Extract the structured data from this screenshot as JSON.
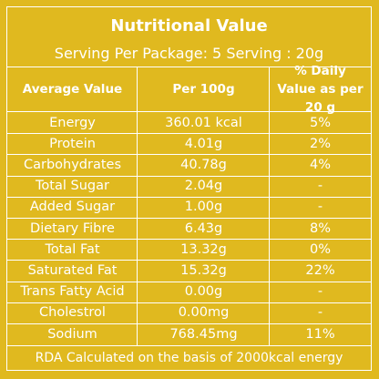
{
  "title": "Nutritional Value",
  "serving": "Serving Per Package: 5 Serving : 20g",
  "headers": {
    "col1": "Average Value",
    "col2": "Per 100g",
    "col3": "% Daily Value as per 20 g"
  },
  "rows": [
    {
      "name": "Energy",
      "per100": "360.01 kcal",
      "daily": "5%"
    },
    {
      "name": "Protein",
      "per100": "4.01g",
      "daily": "2%"
    },
    {
      "name": "Carbohydrates",
      "per100": "40.78g",
      "daily": "4%"
    },
    {
      "name": "Total Sugar",
      "per100": "2.04g",
      "daily": "-"
    },
    {
      "name": "Added Sugar",
      "per100": "1.00g",
      "daily": "-"
    },
    {
      "name": "Dietary Fibre",
      "per100": "6.43g",
      "daily": "8%"
    },
    {
      "name": "Total Fat",
      "per100": "13.32g",
      "daily": "0%"
    },
    {
      "name": "Saturated Fat",
      "per100": "15.32g",
      "daily": "22%"
    },
    {
      "name": "Trans Fatty Acid",
      "per100": "0.00g",
      "daily": "-"
    },
    {
      "name": "Cholestrol",
      "per100": "0.00mg",
      "daily": "-"
    },
    {
      "name": "Sodium",
      "per100": "768.45mg",
      "daily": "11%"
    }
  ],
  "footer": "RDA Calculated on the basis of 2000kcal energy",
  "colors": {
    "background": "#e0b91f",
    "text": "#ffffff",
    "lines": "#ffffff"
  }
}
